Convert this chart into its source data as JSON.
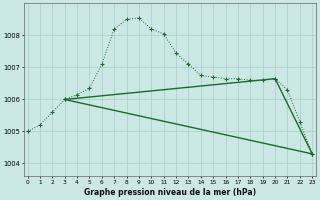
{
  "title": "Graphe pression niveau de la mer (hPa)",
  "background_color": "#cce8e4",
  "grid_color": "#aacccc",
  "line_color": "#1a6b2a",
  "ylim": [
    1003.6,
    1009.0
  ],
  "yticks": [
    1004,
    1005,
    1006,
    1007,
    1008
  ],
  "x_ticks": [
    0,
    1,
    2,
    3,
    4,
    5,
    6,
    7,
    8,
    9,
    10,
    11,
    12,
    13,
    14,
    15,
    16,
    17,
    18,
    19,
    20,
    21,
    22,
    23
  ],
  "series1_x": [
    0,
    1,
    2,
    3,
    4,
    5,
    6,
    7,
    8,
    9,
    10,
    11,
    12,
    13,
    14,
    15,
    16,
    17,
    18,
    19,
    20,
    21,
    22,
    23
  ],
  "series1_y": [
    1005.0,
    1005.2,
    1005.6,
    1006.0,
    1006.15,
    1006.35,
    1007.1,
    1008.2,
    1008.5,
    1008.55,
    1008.2,
    1008.05,
    1007.45,
    1007.1,
    1006.75,
    1006.7,
    1006.65,
    1006.65,
    1006.6,
    1006.6,
    1006.65,
    1006.3,
    1005.3,
    1004.3
  ],
  "line2_x": [
    3,
    20,
    23
  ],
  "line2_y": [
    1006.0,
    1006.65,
    1004.3
  ],
  "line3_x": [
    3,
    23
  ],
  "line3_y": [
    1006.0,
    1004.3
  ]
}
